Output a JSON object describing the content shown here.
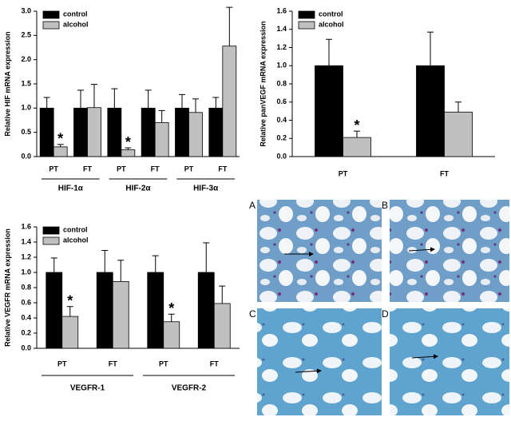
{
  "chart_data": [
    {
      "type": "bar",
      "ylabel": "Relative HIF mRNA expression",
      "categories": [
        "PT",
        "FT",
        "PT",
        "FT",
        "PT",
        "FT"
      ],
      "groups": [
        "HIF-1α",
        "HIF-2α",
        "HIF-3α"
      ],
      "series": [
        {
          "name": "control",
          "color": "#000000",
          "values": [
            1,
            1,
            1,
            1,
            1,
            1
          ],
          "errors": [
            0.22,
            0.37,
            0.4,
            0.37,
            0.28,
            0.22
          ]
        },
        {
          "name": "alcohol",
          "color": "#c0c0c0",
          "values": [
            0.2,
            1.01,
            0.14,
            0.7,
            0.91,
            2.28
          ],
          "errors": [
            0.05,
            0.48,
            0.04,
            0.25,
            0.28,
            0.8
          ]
        }
      ],
      "annotations": [
        {
          "text": "*",
          "series": 1,
          "category": 0
        },
        {
          "text": "*",
          "series": 1,
          "category": 2
        }
      ],
      "ylim": [
        0,
        3
      ],
      "yticks": [
        {
          "value": 0,
          "label": "0.0"
        },
        0.5,
        {
          "value": 1,
          "label": "1.0"
        },
        1.5,
        {
          "value": 2,
          "label": "2.0"
        },
        2.5,
        {
          "value": 3,
          "label": "3.0"
        }
      ],
      "legend": "upper left",
      "grid": false
    },
    {
      "type": "bar",
      "ylabel": "Relative panVEGF mRNA expression",
      "categories": [
        "PT",
        "FT"
      ],
      "series": [
        {
          "name": "control",
          "color": "#000000",
          "values": [
            1,
            1
          ],
          "errors": [
            0.29,
            0.37
          ]
        },
        {
          "name": "alcohol",
          "color": "#c0c0c0",
          "values": [
            0.21,
            0.49
          ],
          "errors": [
            0.07,
            0.11
          ]
        }
      ],
      "annotations": [
        {
          "text": "*",
          "series": 1,
          "category": 0
        }
      ],
      "ylim": [
        0,
        1.6
      ],
      "yticks": [
        {
          "value": 0,
          "label": "0.0"
        },
        0.2,
        0.4,
        0.6,
        0.8,
        {
          "value": 1,
          "label": "1.0"
        },
        1.2,
        1.4,
        1.6
      ],
      "legend": "upper left",
      "grid": false
    },
    {
      "type": "bar",
      "ylabel": "Relative VEGFR mRNA expression",
      "categories": [
        "PT",
        "FT",
        "PT",
        "FT"
      ],
      "groups": [
        "VEGFR-1",
        "VEGFR-2"
      ],
      "series": [
        {
          "name": "control",
          "color": "#000000",
          "values": [
            1,
            1,
            1,
            1
          ],
          "errors": [
            0.19,
            0.29,
            0.22,
            0.39
          ]
        },
        {
          "name": "alcohol",
          "color": "#c0c0c0",
          "values": [
            0.42,
            0.88,
            0.35,
            0.59
          ],
          "errors": [
            0.13,
            0.28,
            0.1,
            0.23
          ]
        }
      ],
      "annotations": [
        {
          "text": "*",
          "series": 1,
          "category": 0
        },
        {
          "text": "*",
          "series": 1,
          "category": 2
        }
      ],
      "ylim": [
        0,
        1.6
      ],
      "yticks": [
        {
          "value": 0,
          "label": "0.0"
        },
        0.2,
        0.4,
        0.6,
        0.8,
        {
          "value": 1,
          "label": "1.0"
        },
        1.2,
        1.4,
        1.6
      ],
      "legend": "upper left",
      "grid": false
    }
  ],
  "panels": [
    "A",
    "B",
    "C",
    "D"
  ]
}
